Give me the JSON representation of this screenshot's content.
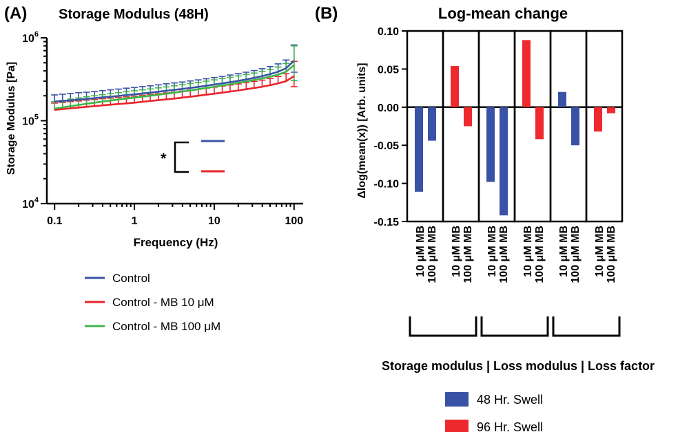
{
  "panelA": {
    "label": "(A)",
    "title": "Storage  Modulus  (48H)",
    "xlabel": "Frequency (Hz)",
    "ylabel": "Storage Modulus [Pa]",
    "x_ticks": [
      "0.1",
      "1",
      "10",
      "100"
    ],
    "y_ticks": [
      {
        "base": "10",
        "exp": "4"
      },
      {
        "base": "10",
        "exp": "5"
      },
      {
        "base": "10",
        "exp": "6"
      }
    ],
    "sig_marker": "*"
  },
  "panelB": {
    "label": "(B)",
    "title": "Log-mean change",
    "ylabel": "Δlog(mean(x)) [Arb.  units]",
    "y_ticks": [
      "0.10",
      "0.05",
      "0.00",
      "-0.05",
      "-0.10",
      "-0.15"
    ],
    "bar_labels": [
      "10  μM MB",
      "100  μM MB",
      "10  μM MB",
      "100  μM MB",
      "10  μM MB",
      "100  μM MB",
      "10  μM MB",
      "100  μM MB",
      "10  μM MB",
      "100  μM MB",
      "10  μM MB",
      "100  μM MB"
    ],
    "group_caption": "Storage modulus | Loss modulus | Loss factor"
  },
  "legendA": [
    {
      "label": "Control",
      "color": "#3a52a6"
    },
    {
      "label": "Control - MB 10 μM",
      "color": "#e8232a"
    },
    {
      "label": "Control - MB 100 μM",
      "color": "#3fb44a"
    }
  ],
  "legendB": [
    {
      "label": "48  Hr.  Swell",
      "color": "#3a52a6"
    },
    {
      "label": "96  Hr.  Swell",
      "color": "#ee2a2e"
    }
  ],
  "chart_data": [
    {
      "type": "line",
      "title": "Storage  Modulus  (48H)",
      "xlabel": "Frequency (Hz)",
      "ylabel": "Storage Modulus [Pa]",
      "xscale": "log",
      "yscale": "log",
      "xlim": [
        0.08,
        130
      ],
      "ylim": [
        10000,
        1000000
      ],
      "x": [
        0.1,
        0.126,
        0.158,
        0.2,
        0.251,
        0.316,
        0.398,
        0.501,
        0.631,
        0.794,
        1,
        1.26,
        1.58,
        2,
        2.51,
        3.16,
        3.98,
        5.01,
        6.31,
        7.94,
        10,
        12.6,
        15.8,
        20,
        25.1,
        31.6,
        39.8,
        50.1,
        63.1,
        79.4,
        100
      ],
      "series": [
        {
          "name": "Control",
          "color": "#3a52a6",
          "values": [
            170000,
            173000,
            176000,
            180000,
            183000,
            187000,
            191000,
            195000,
            199000,
            204000,
            208000,
            213000,
            218000,
            224000,
            230000,
            236000,
            242000,
            249000,
            256000,
            264000,
            273000,
            282000,
            292000,
            303000,
            315000,
            329000,
            345000,
            365000,
            390000,
            430000,
            530000
          ],
          "error": [
            35000,
            36000,
            37000,
            38000,
            38000,
            39000,
            40000,
            41000,
            42000,
            43000,
            44000,
            45000,
            46000,
            47000,
            49000,
            50000,
            51000,
            53000,
            55000,
            57000,
            59000,
            61000,
            64000,
            67000,
            70000,
            74000,
            79000,
            85000,
            95000,
            110000,
            290000
          ]
        },
        {
          "name": "Control - MB 10 μM",
          "color": "#e8232a",
          "values": [
            135000,
            138000,
            141000,
            144000,
            147000,
            150000,
            153000,
            156000,
            159000,
            162000,
            165000,
            169000,
            173000,
            177000,
            181000,
            185000,
            190000,
            195000,
            200000,
            206000,
            212000,
            218000,
            225000,
            232000,
            240000,
            248000,
            257000,
            268000,
            282000,
            300000,
            345000
          ],
          "error": [
            28000,
            28000,
            29000,
            29000,
            30000,
            30000,
            31000,
            31000,
            32000,
            32000,
            33000,
            34000,
            35000,
            35000,
            36000,
            37000,
            38000,
            39000,
            40000,
            41000,
            42000,
            44000,
            45000,
            46000,
            48000,
            50000,
            52000,
            55000,
            60000,
            70000,
            175000
          ]
        },
        {
          "name": "Control - MB 100 μM",
          "color": "#3fb44a",
          "values": [
            140000,
            145000,
            150000,
            155000,
            160000,
            165000,
            170000,
            175000,
            180000,
            185000,
            190000,
            195000,
            200000,
            206000,
            212000,
            218000,
            225000,
            232000,
            240000,
            248000,
            257000,
            266000,
            276000,
            287000,
            298000,
            310000,
            324000,
            340000,
            360000,
            390000,
            470000
          ],
          "error": [
            30000,
            31000,
            32000,
            33000,
            34000,
            35000,
            36000,
            37000,
            38000,
            39000,
            40000,
            41000,
            42000,
            43000,
            44000,
            46000,
            47000,
            49000,
            50000,
            52000,
            54000,
            56000,
            58000,
            60000,
            63000,
            66000,
            70000,
            75000,
            85000,
            100000,
            330000
          ]
        }
      ],
      "annotation": "*",
      "grid": false,
      "legend": "below"
    },
    {
      "type": "bar",
      "title": "Log-mean change",
      "ylabel": "Δlog(mean(x)) [Arb.  units]",
      "ylim": [
        -0.15,
        0.1
      ],
      "groups": [
        "Storage modulus",
        "Loss modulus",
        "Loss factor"
      ],
      "panels": [
        {
          "group": "Storage modulus",
          "series": "48  Hr.  Swell",
          "categories": [
            "10  μM MB",
            "100  μM MB"
          ],
          "values": [
            -0.111,
            -0.044
          ]
        },
        {
          "group": "Storage modulus",
          "series": "96  Hr.  Swell",
          "categories": [
            "10  μM MB",
            "100  μM MB"
          ],
          "values": [
            0.054,
            -0.025
          ]
        },
        {
          "group": "Loss modulus",
          "series": "48  Hr.  Swell",
          "categories": [
            "10  μM MB",
            "100  μM MB"
          ],
          "values": [
            -0.098,
            -0.142
          ]
        },
        {
          "group": "Loss modulus",
          "series": "96  Hr.  Swell",
          "categories": [
            "10  μM MB",
            "100  μM MB"
          ],
          "values": [
            0.088,
            -0.042
          ]
        },
        {
          "group": "Loss factor",
          "series": "48  Hr.  Swell",
          "categories": [
            "10  μM MB",
            "100  μM MB"
          ],
          "values": [
            0.02,
            -0.05
          ]
        },
        {
          "group": "Loss factor",
          "series": "96  Hr.  Swell",
          "categories": [
            "10  μM MB",
            "100  μM MB"
          ],
          "values": [
            -0.032,
            -0.008
          ]
        }
      ],
      "grid": false,
      "legend": "bottom"
    }
  ]
}
